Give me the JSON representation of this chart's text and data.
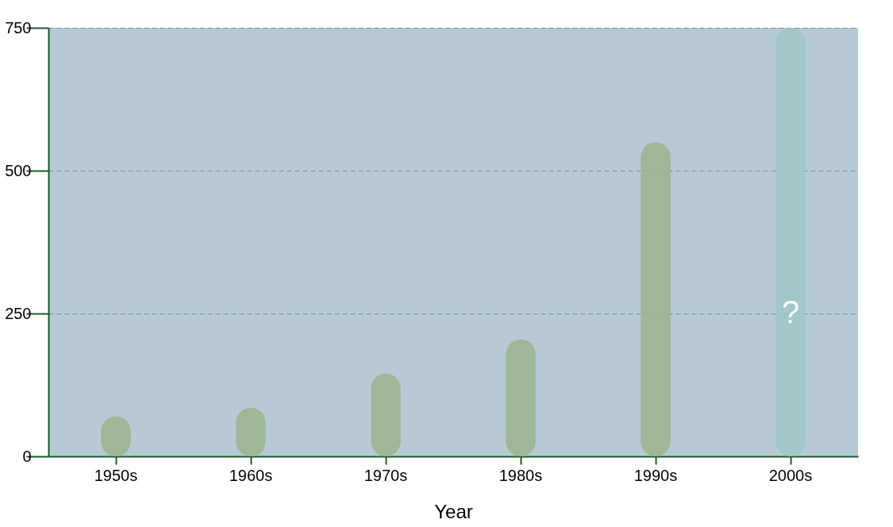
{
  "chart_data": {
    "type": "bar",
    "xlabel": "Year",
    "categories": [
      "1950s",
      "1960s",
      "1970s",
      "1980s",
      "1990s",
      "2000s"
    ],
    "series": [
      {
        "color": "#9cb58f",
        "values": [
          70,
          85,
          145,
          205,
          550,
          null
        ]
      },
      {
        "color": "#9fc7c6",
        "values": [
          null,
          null,
          null,
          null,
          null,
          750
        ]
      }
    ],
    "ylim": [
      0,
      750
    ],
    "yticks": [
      0,
      250,
      500,
      750
    ],
    "grid": "y",
    "annotations": [
      "?"
    ]
  }
}
